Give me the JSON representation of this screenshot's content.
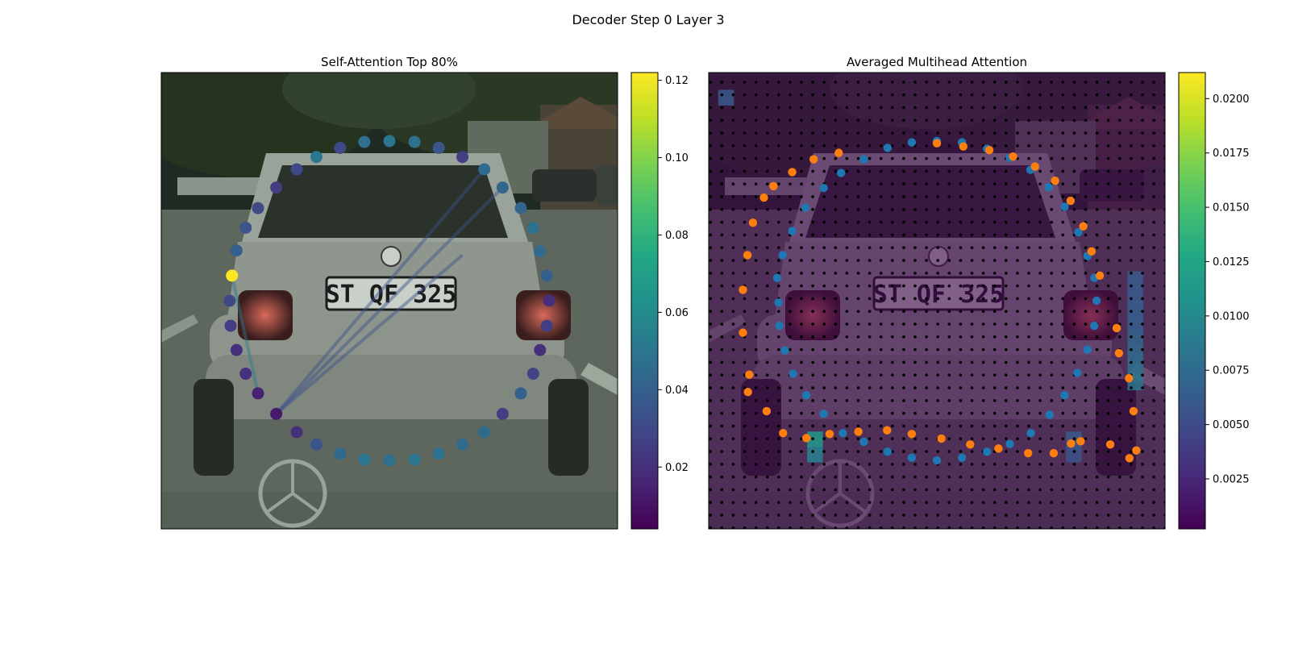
{
  "figure": {
    "suptitle": "Decoder Step 0 Layer 3"
  },
  "chart_data": [
    {
      "type": "scatter",
      "title": "Self-Attention Top 80%",
      "background": "grayscale photo: rear view of a silver hatchback car (license plate 'ST QF 325') on a street with trees",
      "xlim": [
        0,
        100
      ],
      "ylim": [
        0,
        100
      ],
      "colormap": "viridis",
      "colorbar": {
        "min": 0.004,
        "max": 0.122,
        "ticks": [
          0.02,
          0.04,
          0.06,
          0.08,
          0.1,
          0.12
        ],
        "tick_labels": [
          "0.02",
          "0.04",
          "0.06",
          "0.08",
          "0.10",
          "0.12"
        ]
      },
      "grid": false,
      "points": [
        {
          "x": 50.0,
          "y": 85.0,
          "v": 0.05
        },
        {
          "x": 55.5,
          "y": 84.8,
          "v": 0.048
        },
        {
          "x": 60.8,
          "y": 83.5,
          "v": 0.035
        },
        {
          "x": 66.0,
          "y": 81.5,
          "v": 0.025
        },
        {
          "x": 70.8,
          "y": 78.8,
          "v": 0.045
        },
        {
          "x": 74.8,
          "y": 74.8,
          "v": 0.043
        },
        {
          "x": 78.8,
          "y": 70.3,
          "v": 0.042
        },
        {
          "x": 81.5,
          "y": 66.0,
          "v": 0.048
        },
        {
          "x": 83.0,
          "y": 60.8,
          "v": 0.045
        },
        {
          "x": 84.5,
          "y": 55.5,
          "v": 0.04
        },
        {
          "x": 85.0,
          "y": 50.0,
          "v": 0.02
        },
        {
          "x": 84.5,
          "y": 44.5,
          "v": 0.025
        },
        {
          "x": 83.0,
          "y": 39.2,
          "v": 0.02
        },
        {
          "x": 81.5,
          "y": 34.0,
          "v": 0.028
        },
        {
          "x": 78.8,
          "y": 29.7,
          "v": 0.04
        },
        {
          "x": 74.8,
          "y": 25.2,
          "v": 0.025
        },
        {
          "x": 70.8,
          "y": 21.2,
          "v": 0.045
        },
        {
          "x": 66.0,
          "y": 18.5,
          "v": 0.045
        },
        {
          "x": 60.8,
          "y": 16.5,
          "v": 0.048
        },
        {
          "x": 55.5,
          "y": 15.2,
          "v": 0.05
        },
        {
          "x": 50.0,
          "y": 15.0,
          "v": 0.048
        },
        {
          "x": 44.5,
          "y": 15.2,
          "v": 0.05
        },
        {
          "x": 39.2,
          "y": 16.5,
          "v": 0.045
        },
        {
          "x": 34.0,
          "y": 18.5,
          "v": 0.035
        },
        {
          "x": 29.7,
          "y": 21.2,
          "v": 0.02
        },
        {
          "x": 25.2,
          "y": 25.2,
          "v": 0.012
        },
        {
          "x": 21.2,
          "y": 29.7,
          "v": 0.015
        },
        {
          "x": 18.5,
          "y": 34.0,
          "v": 0.02
        },
        {
          "x": 16.5,
          "y": 39.2,
          "v": 0.02
        },
        {
          "x": 15.2,
          "y": 44.5,
          "v": 0.025
        },
        {
          "x": 15.0,
          "y": 50.0,
          "v": 0.03
        },
        {
          "x": 15.5,
          "y": 55.5,
          "v": 0.122
        },
        {
          "x": 16.5,
          "y": 61.0,
          "v": 0.04
        },
        {
          "x": 18.5,
          "y": 66.0,
          "v": 0.035
        },
        {
          "x": 21.2,
          "y": 70.3,
          "v": 0.03
        },
        {
          "x": 25.2,
          "y": 74.8,
          "v": 0.025
        },
        {
          "x": 29.7,
          "y": 78.8,
          "v": 0.03
        },
        {
          "x": 34.0,
          "y": 81.5,
          "v": 0.05
        },
        {
          "x": 39.2,
          "y": 83.5,
          "v": 0.03
        },
        {
          "x": 44.5,
          "y": 84.8,
          "v": 0.048
        }
      ],
      "links": [
        {
          "from": [
            15.5,
            55.5
          ],
          "to": [
            21.2,
            29.7
          ],
          "color": "#2a788e"
        },
        {
          "from": [
            25.2,
            25.2
          ],
          "to": [
            74.8,
            74.8
          ],
          "color": "#3b528b"
        },
        {
          "from": [
            25.2,
            25.2
          ],
          "to": [
            70.8,
            78.8
          ],
          "color": "#3b528b"
        },
        {
          "from": [
            25.2,
            25.2
          ],
          "to": [
            66.0,
            60.0
          ],
          "color": "#3b528b"
        }
      ]
    },
    {
      "type": "heatmap",
      "title": "Averaged Multihead Attention",
      "background": "same car photo, overlaid with semi-transparent attention heatmap and a regular grid of black dots",
      "xlim": [
        0,
        100
      ],
      "ylim": [
        0,
        100
      ],
      "colormap": "viridis",
      "colorbar": {
        "min": 0.0002,
        "max": 0.0212,
        "ticks": [
          0.0025,
          0.005,
          0.0075,
          0.01,
          0.0125,
          0.015,
          0.0175,
          0.02
        ],
        "tick_labels": [
          "0.0025",
          "0.0050",
          "0.0075",
          "0.0100",
          "0.0125",
          "0.0150",
          "0.0175",
          "0.0200"
        ]
      },
      "grid": false,
      "hot_cells": [
        {
          "x": 23.3,
          "y": 19.6,
          "v": 0.0115
        },
        {
          "x": 23.3,
          "y": 16.3,
          "v": 0.0095
        },
        {
          "x": 93.5,
          "y": 32.1,
          "v": 0.0085
        },
        {
          "x": 93.5,
          "y": 35.3,
          "v": 0.008
        },
        {
          "x": 93.5,
          "y": 38.5,
          "v": 0.0075
        },
        {
          "x": 93.5,
          "y": 41.8,
          "v": 0.007
        },
        {
          "x": 93.5,
          "y": 45.0,
          "v": 0.0065
        },
        {
          "x": 93.5,
          "y": 48.2,
          "v": 0.0065
        },
        {
          "x": 93.5,
          "y": 51.5,
          "v": 0.006
        },
        {
          "x": 93.5,
          "y": 54.7,
          "v": 0.006
        },
        {
          "x": 80.0,
          "y": 19.6,
          "v": 0.006
        },
        {
          "x": 80.0,
          "y": 16.3,
          "v": 0.0055
        },
        {
          "x": 3.8,
          "y": 94.5,
          "v": 0.006
        }
      ],
      "series": [
        {
          "name": "predicted (blue)",
          "color": "#1f77b4",
          "points": [
            [
              44.5,
              84.7
            ],
            [
              50.0,
              85.0
            ],
            [
              55.5,
              84.7
            ],
            [
              61.0,
              83.3
            ],
            [
              66.0,
              81.3
            ],
            [
              70.5,
              78.7
            ],
            [
              74.5,
              74.9
            ],
            [
              78.0,
              70.6
            ],
            [
              81.0,
              65.0
            ],
            [
              83.0,
              59.8
            ],
            [
              84.5,
              55.0
            ],
            [
              85.0,
              50.0
            ],
            [
              84.5,
              44.5
            ],
            [
              83.0,
              39.3
            ],
            [
              80.8,
              34.2
            ],
            [
              78.0,
              29.3
            ],
            [
              74.7,
              25.0
            ],
            [
              70.6,
              21.0
            ],
            [
              66.0,
              18.6
            ],
            [
              61.0,
              16.9
            ],
            [
              55.5,
              15.6
            ],
            [
              50.0,
              15.0
            ],
            [
              44.5,
              15.6
            ],
            [
              39.2,
              16.9
            ],
            [
              34.0,
              19.1
            ],
            [
              29.4,
              21.0
            ],
            [
              25.2,
              25.2
            ],
            [
              21.4,
              29.3
            ],
            [
              18.5,
              34.0
            ],
            [
              16.7,
              39.1
            ],
            [
              15.5,
              44.5
            ],
            [
              15.3,
              49.6
            ],
            [
              15.0,
              55.0
            ],
            [
              16.2,
              60.0
            ],
            [
              18.3,
              65.3
            ],
            [
              21.2,
              70.4
            ],
            [
              25.2,
              74.7
            ],
            [
              29.0,
              78.0
            ],
            [
              34.0,
              81.0
            ],
            [
              39.2,
              83.5
            ]
          ]
        },
        {
          "name": "ground truth (orange)",
          "color": "#ff7f0e",
          "points": [
            [
              50.0,
              84.5
            ],
            [
              55.8,
              83.8
            ],
            [
              61.5,
              83.0
            ],
            [
              66.7,
              81.6
            ],
            [
              71.5,
              79.4
            ],
            [
              75.9,
              76.3
            ],
            [
              79.3,
              71.9
            ],
            [
              82.1,
              66.3
            ],
            [
              83.9,
              60.8
            ],
            [
              85.7,
              55.5
            ],
            [
              89.4,
              44.0
            ],
            [
              89.9,
              38.5
            ],
            [
              92.1,
              33.0
            ],
            [
              93.1,
              25.8
            ],
            [
              93.7,
              17.2
            ],
            [
              92.2,
              15.5
            ],
            [
              88.0,
              18.5
            ],
            [
              81.5,
              19.2
            ],
            [
              79.4,
              18.7
            ],
            [
              75.6,
              16.6
            ],
            [
              70.0,
              16.6
            ],
            [
              63.5,
              17.6
            ],
            [
              57.3,
              18.5
            ],
            [
              51.0,
              19.8
            ],
            [
              44.5,
              20.8
            ],
            [
              39.1,
              21.6
            ],
            [
              32.8,
              21.3
            ],
            [
              26.5,
              20.8
            ],
            [
              21.4,
              19.9
            ],
            [
              16.3,
              21.0
            ],
            [
              12.7,
              25.8
            ],
            [
              8.6,
              30.0
            ],
            [
              8.9,
              33.8
            ],
            [
              7.5,
              43.0
            ],
            [
              7.5,
              52.4
            ],
            [
              8.5,
              60.0
            ],
            [
              9.7,
              67.1
            ],
            [
              12.1,
              72.6
            ],
            [
              14.2,
              75.1
            ],
            [
              18.3,
              78.2
            ],
            [
              23.0,
              81.0
            ],
            [
              28.5,
              82.4
            ]
          ]
        }
      ]
    }
  ]
}
